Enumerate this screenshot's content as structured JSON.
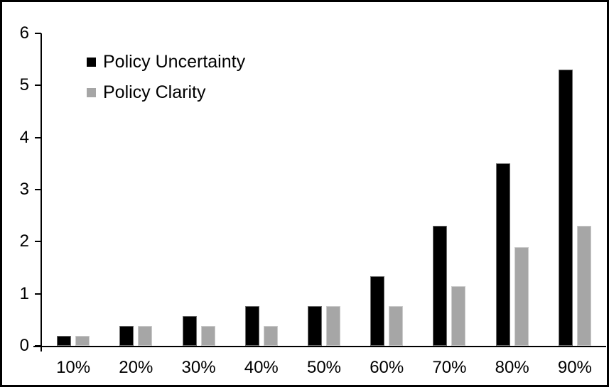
{
  "chart_data": {
    "type": "bar",
    "title": "",
    "xlabel": "",
    "ylabel": "",
    "categories": [
      "10%",
      "20%",
      "30%",
      "40%",
      "50%",
      "60%",
      "70%",
      "80%",
      "90%"
    ],
    "series": [
      {
        "name": "Policy Uncertainty",
        "color": "#000000",
        "values": [
          0.19,
          0.38,
          0.57,
          0.76,
          0.77,
          1.33,
          2.3,
          3.5,
          5.3
        ]
      },
      {
        "name": "Policy Clarity",
        "color": "#A6A6A6",
        "values": [
          0.19,
          0.38,
          0.38,
          0.38,
          0.77,
          0.77,
          1.15,
          1.9,
          2.3
        ]
      }
    ],
    "ylim": [
      0,
      6
    ],
    "yticks": [
      0,
      1,
      2,
      3,
      4,
      5,
      6
    ],
    "grid": false,
    "legend_position": "top-left-inside",
    "background_color": "#FFFFFF",
    "axis_color": "#000000"
  }
}
